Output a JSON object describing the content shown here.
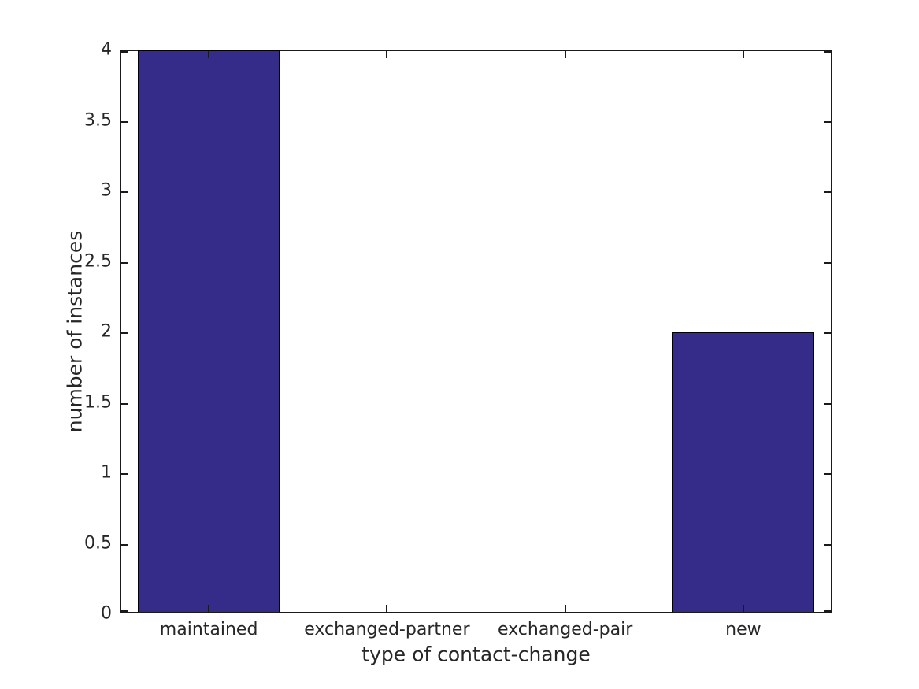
{
  "chart_data": {
    "type": "bar",
    "categories": [
      "maintained",
      "exchanged-partner",
      "exchanged-pair",
      "new"
    ],
    "values": [
      4,
      0,
      0,
      2
    ],
    "title": "",
    "xlabel": "type of contact-change",
    "ylabel": "number of instances",
    "ylim": [
      0,
      4
    ],
    "yticks": [
      0,
      0.5,
      1,
      1.5,
      2,
      2.5,
      3,
      3.5,
      4
    ],
    "ytick_labels": [
      "0",
      "0.5",
      "1",
      "1.5",
      "2",
      "2.5",
      "3",
      "3.5",
      "4"
    ],
    "bar_color": "#352c8a",
    "bar_edge_color": "#000000",
    "axis_color": "#1a1a1a",
    "text_color": "#262626",
    "background_color": "#ffffff",
    "grid": false,
    "legend_position": "none",
    "bar_width_fraction": 0.8
  }
}
